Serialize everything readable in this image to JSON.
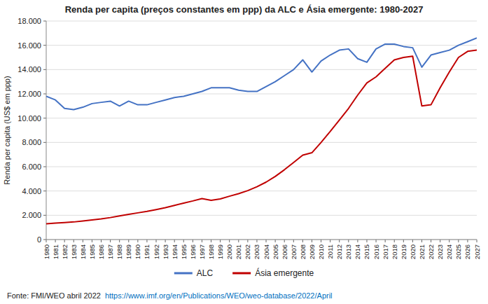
{
  "chart_data": {
    "type": "line",
    "title": "Renda per capita (preços constantes em ppp) da ALC e Ásia emergente: 1980-2027",
    "ylabel": "Renda per capita (US$ em ppp)",
    "x": [
      1980,
      1981,
      1982,
      1983,
      1984,
      1985,
      1986,
      1987,
      1988,
      1989,
      1990,
      1991,
      1992,
      1993,
      1994,
      1995,
      1996,
      1997,
      1998,
      1999,
      2000,
      2001,
      2002,
      2003,
      2004,
      2005,
      2006,
      2007,
      2008,
      2009,
      2010,
      2011,
      2012,
      2013,
      2014,
      2015,
      2016,
      2017,
      2018,
      2019,
      2020,
      2021,
      2022,
      2023,
      2024,
      2025,
      2026,
      2027
    ],
    "series": [
      {
        "name": "ALC",
        "color": "#4472C4",
        "values": [
          11800,
          11500,
          10800,
          10700,
          10900,
          11200,
          11300,
          11400,
          11000,
          11400,
          11100,
          11100,
          11300,
          11500,
          11700,
          11800,
          12000,
          12200,
          12500,
          12500,
          12500,
          12300,
          12200,
          12200,
          12600,
          13000,
          13500,
          14000,
          14800,
          13800,
          14700,
          15200,
          15600,
          15700,
          14900,
          14600,
          15700,
          16100,
          16100,
          15900,
          15800,
          14200,
          15200,
          15400,
          15600,
          16000,
          16300,
          16600
        ]
      },
      {
        "name": "Ásia emergente",
        "color": "#C00000",
        "values": [
          1300,
          1350,
          1400,
          1450,
          1530,
          1610,
          1700,
          1810,
          1950,
          2080,
          2200,
          2320,
          2470,
          2630,
          2810,
          3000,
          3180,
          3380,
          3230,
          3350,
          3570,
          3780,
          4030,
          4350,
          4730,
          5200,
          5750,
          6350,
          6950,
          7150,
          8000,
          8900,
          9850,
          10800,
          11900,
          12900,
          13400,
          14100,
          14800,
          15000,
          15100,
          11000,
          11100,
          12500,
          13800,
          15000,
          15500,
          15600
        ]
      }
    ],
    "xlim": [
      1980,
      2027
    ],
    "xticks": [
      1980,
      1981,
      1982,
      1983,
      1984,
      1985,
      1986,
      1987,
      1988,
      1989,
      1990,
      1991,
      1992,
      1993,
      1994,
      1995,
      1996,
      1997,
      1998,
      1999,
      2000,
      2001,
      2002,
      2003,
      2004,
      2005,
      2006,
      2007,
      2008,
      2009,
      2010,
      2011,
      2012,
      2013,
      2014,
      2015,
      2016,
      2017,
      2018,
      2019,
      2020,
      2021,
      2022,
      2023,
      2024,
      2025,
      2026,
      2027
    ],
    "ylim": [
      0,
      18000
    ],
    "yticks": [
      0,
      {
        "value": 2000,
        "label": "2.000"
      },
      {
        "value": 4000,
        "label": "4.000"
      },
      {
        "value": 6000,
        "label": "6.000"
      },
      {
        "value": 8000,
        "label": "8.000"
      },
      {
        "value": 10000,
        "label": "10.000"
      },
      {
        "value": 12000,
        "label": "12.000"
      },
      {
        "value": 14000,
        "label": "14.000"
      },
      {
        "value": 16000,
        "label": "16.000"
      },
      {
        "value": 18000,
        "label": "18.000"
      }
    ],
    "grid": "y",
    "legend": "bottom",
    "annotations": [
      {
        "text": "Fonte: FMI/WEO abril 2022"
      },
      {
        "text": "https://www.imf.org/en/Publications/WEO/weo-database/2022/April",
        "color": "#0070C0"
      }
    ]
  }
}
